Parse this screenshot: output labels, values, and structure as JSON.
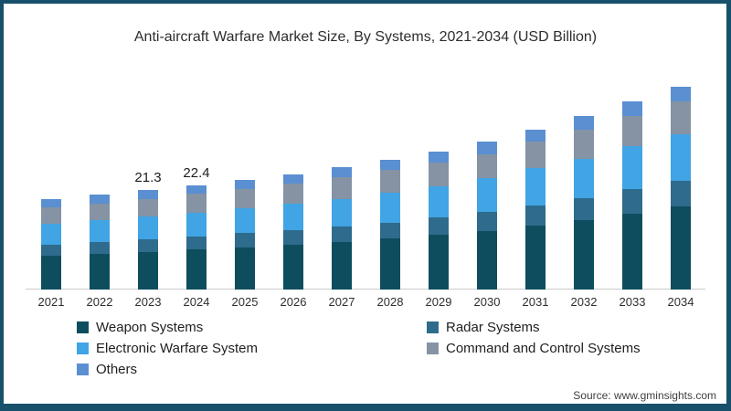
{
  "title": "Anti-aircraft Warfare Market Size, By Systems, 2021-2034 (USD Billion)",
  "source": "Source: www.gminsights.com",
  "colors": {
    "frame_border": "#17506b",
    "axis_line": "#cbcbcb",
    "weapon_systems": "#0d4d5e",
    "radar_systems": "#2e6b8c",
    "electronic_warfare_system": "#41a4e4",
    "command_and_control_systems": "#8593a4",
    "others": "#5a8fd1"
  },
  "chart_data": {
    "type": "bar",
    "stacked": true,
    "title": "Anti-aircraft Warfare Market Size, By Systems, 2021-2034 (USD Billion)",
    "unit": "USD Billion",
    "xlabel": "",
    "ylabel": "",
    "ylim": [
      0,
      45
    ],
    "grid": false,
    "legend_position": "bottom-left",
    "categories": [
      "2021",
      "2022",
      "2023",
      "2024",
      "2025",
      "2026",
      "2027",
      "2028",
      "2029",
      "2030",
      "2031",
      "2032",
      "2033",
      "2034"
    ],
    "series": [
      {
        "name": "Weapon Systems",
        "color": "#0d4d5e",
        "values": [
          7.3,
          7.7,
          8.1,
          8.6,
          9.1,
          9.6,
          10.2,
          10.9,
          11.7,
          12.5,
          13.7,
          14.9,
          16.3,
          17.8
        ]
      },
      {
        "name": "Radar Systems",
        "color": "#2e6b8c",
        "values": [
          2.4,
          2.5,
          2.7,
          2.8,
          3.0,
          3.1,
          3.3,
          3.5,
          3.7,
          4.1,
          4.4,
          4.7,
          5.2,
          5.6
        ]
      },
      {
        "name": "Electronic Warfare System",
        "color": "#41a4e4",
        "values": [
          4.5,
          4.7,
          4.9,
          5.1,
          5.4,
          5.7,
          6.0,
          6.4,
          6.8,
          7.4,
          7.9,
          8.5,
          9.2,
          10.0
        ]
      },
      {
        "name": "Command and Control Systems",
        "color": "#8593a4",
        "values": [
          3.5,
          3.6,
          3.8,
          4.0,
          4.1,
          4.4,
          4.6,
          4.8,
          5.1,
          5.1,
          5.7,
          6.2,
          6.6,
          7.0
        ]
      },
      {
        "name": "Others",
        "color": "#5a8fd1",
        "values": [
          1.7,
          1.8,
          1.8,
          1.9,
          1.9,
          2.0,
          2.1,
          2.2,
          2.3,
          2.7,
          2.6,
          2.9,
          3.1,
          3.2
        ]
      }
    ],
    "totals": [
      19.4,
      20.3,
      21.3,
      22.4,
      23.5,
      24.8,
      26.2,
      27.8,
      29.6,
      31.8,
      34.3,
      37.2,
      40.4,
      43.6
    ],
    "bar_labels": {
      "2023": "21.3",
      "2024": "22.4"
    }
  },
  "legend": {
    "items": [
      "Weapon Systems",
      "Radar Systems",
      "Electronic Warfare System",
      "Command and Control Systems",
      "Others"
    ]
  }
}
